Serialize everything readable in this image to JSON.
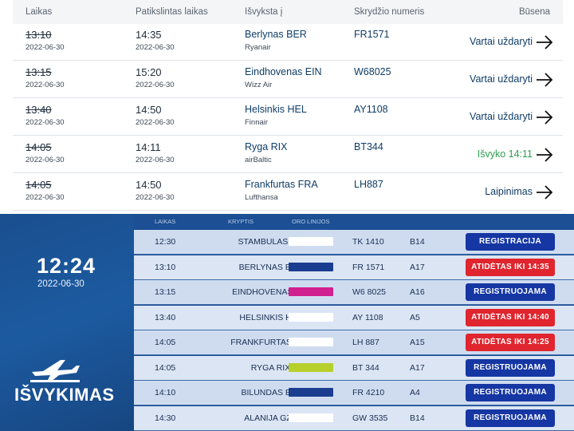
{
  "web_header": {
    "col_time": "Laikas",
    "col_updated": "Patikslintas laikas",
    "col_destination": "Išvyksta į",
    "col_flight": "Skrydžio numeris",
    "col_status": "Būsena"
  },
  "web_rows": [
    {
      "scheduled": "13:10",
      "scheduled_date": "2022-06-30",
      "updated": "14:35",
      "updated_date": "2022-06-30",
      "destination": "Berlynas BER",
      "airline": "Ryanair",
      "flight": "FR1571",
      "status": "Vartai uždaryti",
      "status_color": "#0f3d66"
    },
    {
      "scheduled": "13:15",
      "scheduled_date": "2022-06-30",
      "updated": "15:20",
      "updated_date": "2022-06-30",
      "destination": "Eindhovenas EIN",
      "airline": "Wizz Air",
      "flight": "W68025",
      "status": "Vartai uždaryti",
      "status_color": "#0f3d66"
    },
    {
      "scheduled": "13:40",
      "scheduled_date": "2022-06-30",
      "updated": "14:50",
      "updated_date": "2022-06-30",
      "destination": "Helsinkis HEL",
      "airline": "Finnair",
      "flight": "AY1108",
      "status": "Vartai uždaryti",
      "status_color": "#0f3d66"
    },
    {
      "scheduled": "14:05",
      "scheduled_date": "2022-06-30",
      "updated": "14:11",
      "updated_date": "2022-06-30",
      "destination": "Ryga RIX",
      "airline": "airBaltic",
      "flight": "BT344",
      "status": "Išvyko 14:11",
      "status_color": "#2e9e4f"
    },
    {
      "scheduled": "14:05",
      "scheduled_date": "2022-06-30",
      "updated": "14:50",
      "updated_date": "2022-06-30",
      "destination": "Frankfurtas FRA",
      "airline": "Lufthansa",
      "flight": "LH887",
      "status": "Laipinimas",
      "status_color": "#0f3d66"
    }
  ],
  "board": {
    "clock": "12:24",
    "date": "2022-06-30",
    "title": "IŠVYKIMAS",
    "head_time": "LAIKAS",
    "head_dest": "KRYPTIS",
    "head_airline": "ORO LINIJOS",
    "rows": [
      {
        "time": "12:30",
        "destination": "STAMBULAS IST",
        "logo": "turkish-airlines-logo",
        "logo_color": "#ffffff",
        "flight": "TK 1410",
        "gate": "B14",
        "status": "REGISTRACIJA BAIGTA",
        "status_color": "#1536a3"
      },
      {
        "time": "13:10",
        "destination": "BERLYNAS BER",
        "logo": "ryanair-logo",
        "logo_color": "#1b3d8f",
        "flight": "FR 1571",
        "gate": "A17",
        "status": "ATIDĖTAS IKI 14:35",
        "status_color": "#e0252e"
      },
      {
        "time": "13:15",
        "destination": "EINDHOVENAS EIN",
        "logo": "wizz-air-logo",
        "logo_color": "#d1208f",
        "flight": "W6 8025",
        "gate": "A16",
        "status": "REGISTRUOJAMA",
        "status_color": "#1536a3"
      },
      {
        "time": "13:40",
        "destination": "HELSINKIS HEL",
        "logo": "finnair-logo",
        "logo_color": "#ffffff",
        "flight": "AY 1108",
        "gate": "A5",
        "status": "ATIDĖTAS IKI 14:40",
        "status_color": "#e0252e"
      },
      {
        "time": "14:05",
        "destination": "FRANKFURTAS FRA",
        "logo": "lufthansa-logo",
        "logo_color": "#ffffff",
        "flight": "LH 887",
        "gate": "A15",
        "status": "ATIDĖTAS IKI 14:25",
        "status_color": "#e0252e"
      },
      {
        "time": "14:05",
        "destination": "RYGA RIX",
        "logo": "airbaltic-logo",
        "logo_color": "#b7cf2a",
        "flight": "BT 344",
        "gate": "A17",
        "status": "REGISTRUOJAMA",
        "status_color": "#1536a3"
      },
      {
        "time": "14:10",
        "destination": "BILUNDAS BLL",
        "logo": "ryanair-logo",
        "logo_color": "#1b3d8f",
        "flight": "FR 4210",
        "gate": "A4",
        "status": "REGISTRUOJAMA",
        "status_color": "#1536a3"
      },
      {
        "time": "14:30",
        "destination": "ALANIJA GZP",
        "logo": "airline-logo",
        "logo_color": "#ffffff",
        "flight": "GW 3535",
        "gate": "B14",
        "status": "REGISTRUOJAMA",
        "status_color": "#1536a3"
      }
    ]
  }
}
